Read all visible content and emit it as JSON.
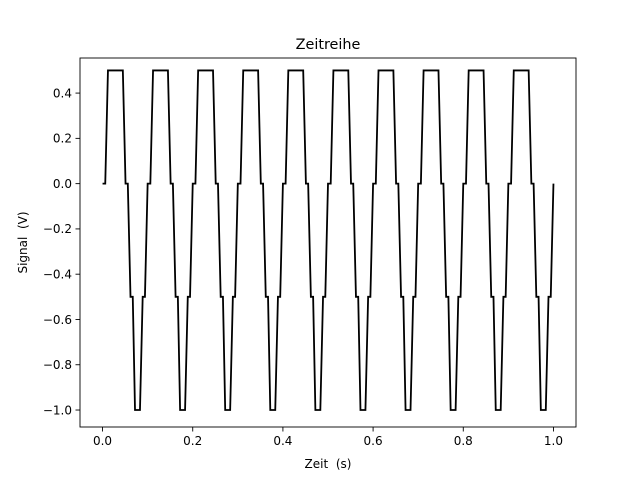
{
  "chart_data": {
    "type": "line",
    "title": "Zeitreihe",
    "xlabel": "Zeit  (s)",
    "ylabel": "Signal  (V)",
    "xlim": [
      -0.05,
      1.05
    ],
    "ylim": [
      -1.075,
      0.555
    ],
    "xticks": [
      0.0,
      0.2,
      0.4,
      0.6,
      0.8,
      1.0
    ],
    "xtick_labels": [
      "0.0",
      "0.2",
      "0.4",
      "0.6",
      "0.8",
      "1.0"
    ],
    "yticks": [
      0.4,
      0.2,
      0.0,
      -0.2,
      -0.4,
      -0.6,
      -0.8,
      -1.0
    ],
    "ytick_labels": [
      "0.4",
      "0.2",
      "0.0",
      "−0.2",
      "−0.4",
      "−0.6",
      "−0.8",
      "−1.0"
    ],
    "grid": false,
    "legend": false,
    "series": [
      {
        "color": "#000000",
        "style": "step",
        "period": 0.1,
        "x": [
          0,
          0.006,
          0.012,
          0.045,
          0.051,
          0.056,
          0.062,
          0.067,
          0.072,
          0.083,
          0.089,
          0.094,
          0.1,
          1.0
        ],
        "y": [
          0.0,
          0.0,
          0.5,
          0.5,
          0.0,
          0.0,
          -0.5,
          -0.5,
          -1.0,
          -1.0,
          -0.5,
          -0.5,
          0.0,
          0.0
        ]
      }
    ]
  }
}
